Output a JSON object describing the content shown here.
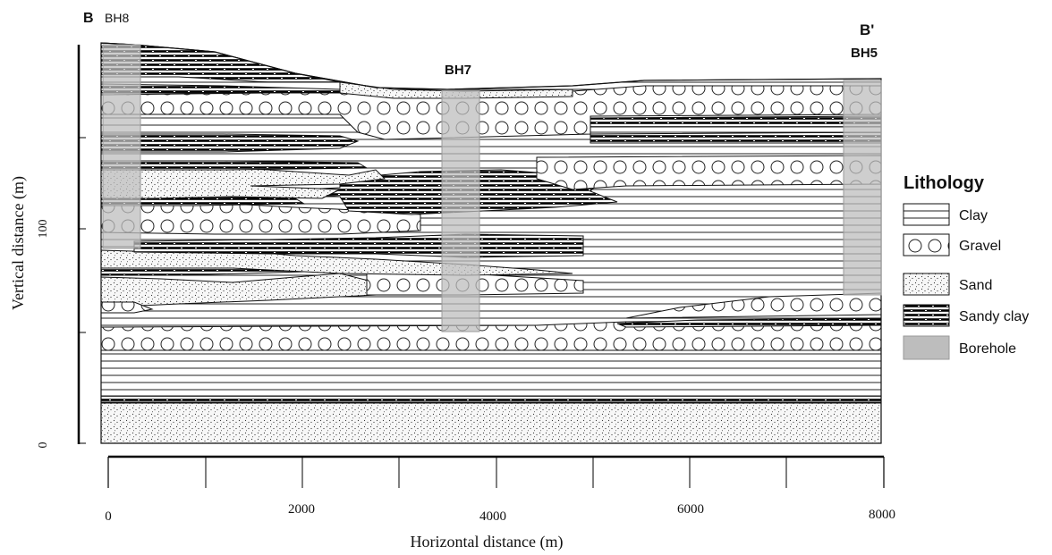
{
  "section": {
    "start_label": "B",
    "end_label": "B'"
  },
  "boreholes": [
    {
      "name": "BH8"
    },
    {
      "name": "BH7"
    },
    {
      "name": "BH5"
    }
  ],
  "axes": {
    "y_label": "Vertical distance (m)",
    "x_label": "Horizontal distance (m)",
    "y_ticks": [
      "0",
      "100"
    ],
    "x_ticks": [
      "0",
      "2000",
      "4000",
      "6000",
      "8000"
    ]
  },
  "legend": {
    "title": "Lithology",
    "items": [
      {
        "label": "Clay",
        "pattern": "clay"
      },
      {
        "label": "Gravel",
        "pattern": "gravel"
      },
      {
        "label": "Sand",
        "pattern": "sand"
      },
      {
        "label": "Sandy clay",
        "pattern": "sandyclay"
      },
      {
        "label": "Borehole",
        "pattern": "borehole"
      }
    ]
  },
  "colors": {
    "outline": "#000000",
    "borehole_fill": "#bdbdbd",
    "background": "#ffffff"
  }
}
